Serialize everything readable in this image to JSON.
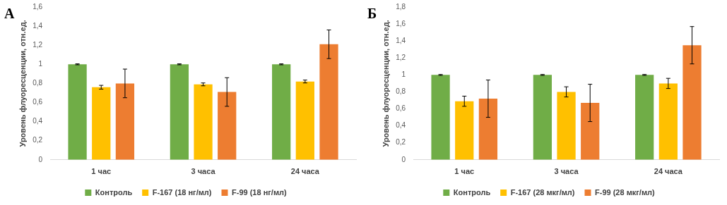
{
  "chart_data": [
    {
      "type": "bar",
      "title": "А",
      "y_label": "Уровень флуоресценции, отн.ед.",
      "categories": [
        "1 час",
        "3 часа",
        "24 часа"
      ],
      "series": [
        {
          "name": "Контроль",
          "color": "#70ad47",
          "values": [
            1,
            1,
            1
          ],
          "errors": [
            0.005,
            0.005,
            0.005
          ]
        },
        {
          "name": "F-167 (18 нг/мл)",
          "color": "#ffc000",
          "values": [
            0.76,
            0.79,
            0.82
          ],
          "errors": [
            0.02,
            0.015,
            0.015
          ]
        },
        {
          "name": "F-99 (18 нг/мл)",
          "color": "#ed7d31",
          "values": [
            0.8,
            0.71,
            1.21
          ],
          "errors": [
            0.15,
            0.15,
            0.15
          ]
        }
      ],
      "ylim": [
        0,
        1.6
      ],
      "yticks": [
        0,
        {
          "value": 0.2,
          "label": "0,2"
        },
        {
          "value": 0.4,
          "label": "0,4"
        },
        {
          "value": 0.6,
          "label": "0,6"
        },
        {
          "value": 0.8,
          "label": "0,8"
        },
        1,
        {
          "value": 1.2,
          "label": "1,2"
        },
        {
          "value": 1.4,
          "label": "1,4"
        },
        {
          "value": 1.6,
          "label": "1,6"
        }
      ],
      "grid": false,
      "legend": "bottom"
    },
    {
      "type": "bar",
      "title": "Б",
      "y_label": "Уровень флуоресценции, отн.ед.",
      "categories": [
        "1 час",
        "3 часа",
        "24 часа"
      ],
      "series": [
        {
          "name": "Контроль",
          "color": "#70ad47",
          "values": [
            1,
            1,
            1
          ],
          "errors": [
            0.005,
            0.005,
            0.005
          ]
        },
        {
          "name": "F-167 (28 мкг/мл)",
          "color": "#ffc000",
          "values": [
            0.69,
            0.8,
            0.9
          ],
          "errors": [
            0.06,
            0.06,
            0.06
          ]
        },
        {
          "name": "F-99 (28 мкг/мл)",
          "color": "#ed7d31",
          "values": [
            0.72,
            0.67,
            1.35
          ],
          "errors": [
            0.22,
            0.22,
            0.22
          ]
        }
      ],
      "ylim": [
        0,
        1.8
      ],
      "yticks": [
        0,
        {
          "value": 0.2,
          "label": "0,2"
        },
        {
          "value": 0.4,
          "label": "0,4"
        },
        {
          "value": 0.6,
          "label": "0,6"
        },
        {
          "value": 0.8,
          "label": "0,8"
        },
        1,
        {
          "value": 1.2,
          "label": "1,2"
        },
        {
          "value": 1.4,
          "label": "1,4"
        },
        {
          "value": 1.6,
          "label": "1,6"
        },
        {
          "value": 1.8,
          "label": "1,8"
        }
      ],
      "grid": false,
      "legend": "bottom"
    }
  ]
}
